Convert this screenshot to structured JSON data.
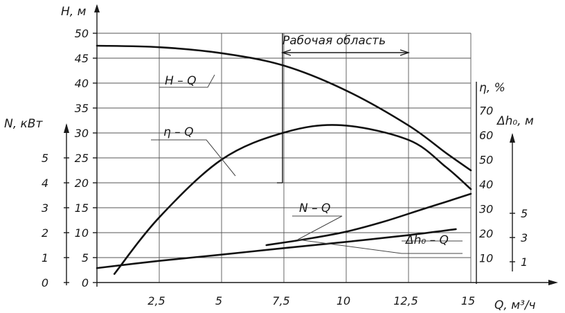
{
  "chart_data": {
    "type": "line",
    "x_axis": {
      "label": "Q, м³/ч",
      "range": [
        0,
        15
      ],
      "ticks": [
        {
          "v": 2.5,
          "t": "2,5"
        },
        {
          "v": 5,
          "t": "5"
        },
        {
          "v": 7.5,
          "t": "7,5"
        },
        {
          "v": 10,
          "t": "10"
        },
        {
          "v": 12.5,
          "t": "12,5"
        },
        {
          "v": 15,
          "t": "15"
        }
      ]
    },
    "axes": {
      "H": {
        "label": "H, м",
        "range": [
          0,
          50
        ],
        "ticks": [
          0,
          5,
          10,
          15,
          20,
          25,
          30,
          35,
          40,
          45,
          50
        ]
      },
      "N": {
        "label": "N, кВт",
        "range": [
          0,
          7
        ],
        "ticks": [
          0,
          1,
          2,
          3,
          4,
          5
        ]
      },
      "eta": {
        "label": "η, %",
        "range": [
          0,
          100
        ],
        "ticks": [
          10,
          20,
          30,
          40,
          50,
          60,
          70
        ]
      },
      "dh": {
        "label": "Δh₀, м",
        "ranges_note": "",
        "ticks": [
          {
            "v": 1,
            "t": "1"
          },
          {
            "v": 3,
            "t": "3"
          },
          {
            "v": 5,
            "t": "5"
          }
        ]
      }
    },
    "series": [
      {
        "name": "H – Q",
        "axis": "H",
        "points": [
          [
            0,
            47.5
          ],
          [
            2.5,
            47.2
          ],
          [
            5,
            46
          ],
          [
            7.5,
            43.5
          ],
          [
            10,
            38.5
          ],
          [
            12.5,
            31.5
          ],
          [
            14,
            26
          ],
          [
            15,
            22.5
          ]
        ]
      },
      {
        "name": "η – Q",
        "axis": "eta",
        "points": [
          [
            0.7,
            3.5
          ],
          [
            2.5,
            26.5
          ],
          [
            5,
            50
          ],
          [
            7.5,
            61
          ],
          [
            9.8,
            64
          ],
          [
            12.5,
            58
          ],
          [
            14,
            47
          ],
          [
            15,
            38
          ]
        ]
      },
      {
        "name": "N – Q",
        "axis": "N",
        "points": [
          [
            0,
            0.58
          ],
          [
            2.5,
            0.87
          ],
          [
            5,
            1.12
          ],
          [
            7.5,
            1.38
          ],
          [
            10,
            1.63
          ],
          [
            12.5,
            1.9
          ],
          [
            14.4,
            2.14
          ]
        ]
      },
      {
        "name": "Δh₀ – Q",
        "axis": "dh",
        "points": [
          [
            6.8,
            7.5
          ],
          [
            8.5,
            8.8
          ],
          [
            10,
            10.2
          ],
          [
            11.5,
            12.2
          ],
          [
            13,
            14.6
          ],
          [
            14.2,
            16.5
          ],
          [
            15,
            17.8
          ]
        ]
      }
    ],
    "annotation": {
      "text": "Рабочая область",
      "x_range": [
        7.5,
        12.5
      ]
    }
  }
}
